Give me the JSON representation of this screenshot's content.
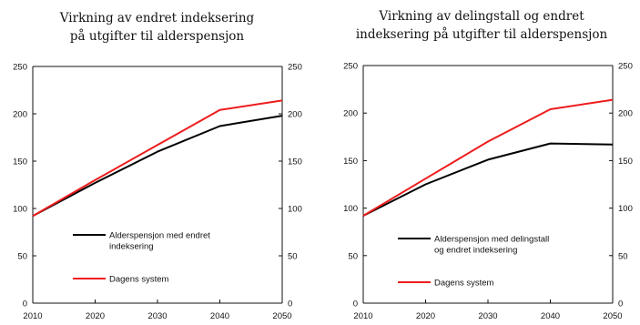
{
  "chart_data": [
    {
      "type": "line",
      "title": "Virkning av endret indeksering på utgifter til alderspensjon",
      "title_lines": [
        "Virkning av endret indeksering",
        "på utgifter til alderspensjon"
      ],
      "x": [
        2010,
        2020,
        2030,
        2040,
        2050
      ],
      "ylim": [
        0,
        250
      ],
      "yticks_left": [
        0,
        50,
        100,
        150,
        200,
        250
      ],
      "yticks_right": [
        0,
        50,
        100,
        150,
        200,
        250
      ],
      "grid": false,
      "legend_position": "lower-right",
      "series": [
        {
          "name": "Alderspensjon med endret indeksering",
          "name_lines": [
            "Alderspensjon med endret",
            "indeksering"
          ],
          "color": "#000000",
          "values": [
            92,
            127,
            160,
            187,
            198
          ]
        },
        {
          "name": "Dagens system",
          "name_lines": [
            "Dagens system"
          ],
          "color": "#ee1c1c",
          "values": [
            92,
            130,
            167,
            204,
            214
          ]
        }
      ]
    },
    {
      "type": "line",
      "title": "Virkning av delingstall og endret indeksering på utgifter til alderspensjon",
      "title_lines": [
        "Virkning av delingstall og endret",
        "indeksering på utgifter til alderspensjon"
      ],
      "x": [
        2010,
        2020,
        2030,
        2040,
        2050
      ],
      "ylim": [
        0,
        250
      ],
      "yticks_left": [
        0,
        50,
        100,
        150,
        200,
        250
      ],
      "yticks_right": [
        0,
        50,
        100,
        150,
        200,
        250
      ],
      "grid": false,
      "legend_position": "lower-right",
      "series": [
        {
          "name": "Alderspensjon med delingstall og endret indeksering",
          "name_lines": [
            "Alderspensjon med delingstall",
            "og endret indeksering"
          ],
          "color": "#000000",
          "values": [
            92,
            125,
            151,
            168,
            167
          ]
        },
        {
          "name": "Dagens system",
          "name_lines": [
            "Dagens system"
          ],
          "color": "#ee1c1c",
          "values": [
            92,
            131,
            170,
            204,
            214
          ]
        }
      ]
    }
  ]
}
